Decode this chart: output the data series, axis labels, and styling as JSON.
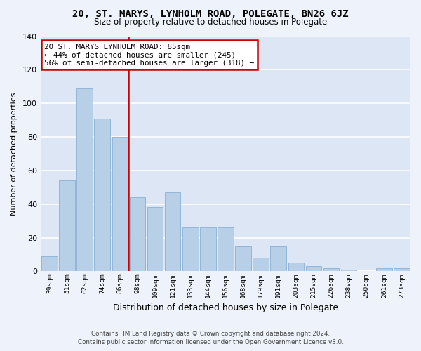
{
  "title": "20, ST. MARYS, LYNHOLM ROAD, POLEGATE, BN26 6JZ",
  "subtitle": "Size of property relative to detached houses in Polegate",
  "xlabel": "Distribution of detached houses by size in Polegate",
  "ylabel": "Number of detached properties",
  "footer_line1": "Contains HM Land Registry data © Crown copyright and database right 2024.",
  "footer_line2": "Contains public sector information licensed under the Open Government Licence v3.0.",
  "bar_labels": [
    "39sqm",
    "51sqm",
    "62sqm",
    "74sqm",
    "86sqm",
    "98sqm",
    "109sqm",
    "121sqm",
    "133sqm",
    "144sqm",
    "156sqm",
    "168sqm",
    "179sqm",
    "191sqm",
    "203sqm",
    "215sqm",
    "226sqm",
    "238sqm",
    "250sqm",
    "261sqm",
    "273sqm"
  ],
  "bar_values": [
    9,
    54,
    109,
    91,
    80,
    44,
    38,
    47,
    26,
    26,
    26,
    15,
    8,
    15,
    5,
    3,
    2,
    1,
    0,
    2,
    2
  ],
  "bar_color": "#b8cfe8",
  "bar_edgecolor": "#8aafd4",
  "plot_bg_color": "#dce6f5",
  "fig_bg_color": "#eef2fa",
  "grid_color": "#ffffff",
  "annotation_box_text_line1": "20 ST. MARYS LYNHOLM ROAD: 85sqm",
  "annotation_box_text_line2": "← 44% of detached houses are smaller (245)",
  "annotation_box_text_line3": "56% of semi-detached houses are larger (318) →",
  "vline_x": 4.5,
  "vline_color": "#cc0000",
  "ylim": [
    0,
    140
  ],
  "yticks": [
    0,
    20,
    40,
    60,
    80,
    100,
    120,
    140
  ]
}
